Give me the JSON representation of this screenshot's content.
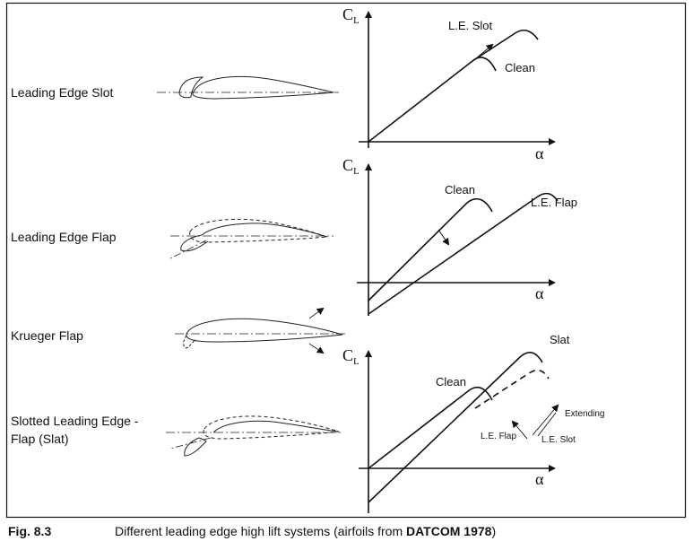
{
  "rows": [
    {
      "label": "Leading Edge Slot"
    },
    {
      "label": "Leading Edge Flap"
    },
    {
      "label": "Krueger Flap"
    },
    {
      "label_line1": "Slotted Leading Edge -",
      "label_line2": "Flap (Slat)"
    }
  ],
  "axes": {
    "y_symbol": "C",
    "y_subscript": "L",
    "x_symbol": "α"
  },
  "graph1": {
    "curve_top": "L.E. Slot",
    "curve_base": "Clean"
  },
  "graph2": {
    "curve_base": "Clean",
    "curve_shift": "L.E. Flap"
  },
  "graph3": {
    "curve_top": "Slat",
    "curve_base": "Clean",
    "inset_extending": "Extending",
    "inset_le_flap": "L.E. Flap",
    "inset_le_slot": "L.E. Slot"
  },
  "caption": {
    "number": "Fig. 8.3",
    "text": "Different leading edge high lift systems (airfoils from ",
    "source": "DATCOM 1978",
    "close": ")"
  }
}
